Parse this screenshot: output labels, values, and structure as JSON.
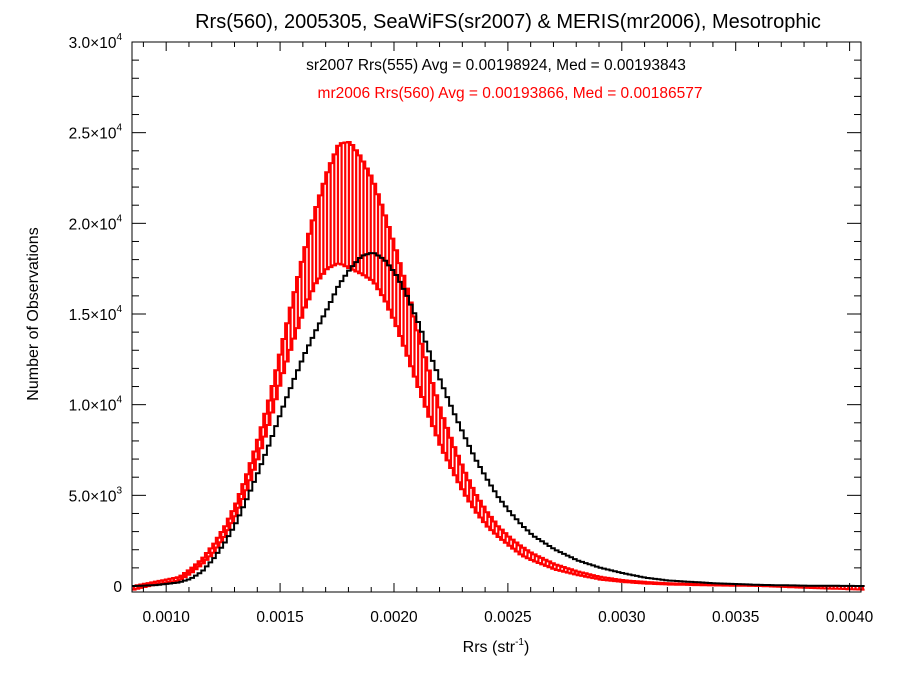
{
  "chart_data": {
    "type": "line",
    "title": "Rrs(560), 2005305, SeaWiFS(sr2007) & MERIS(mr2006), Mesotrophic",
    "xlabel": "Rrs (str",
    "xlabel_sup": "-1",
    "xlabel_close": ")",
    "ylabel": "Number of Observations",
    "xlim": [
      0.00085,
      0.00405
    ],
    "ylim": [
      0,
      30000
    ],
    "x_ticks": [
      {
        "value": 0.001,
        "label": "0.0010"
      },
      {
        "value": 0.0015,
        "label": "0.0015"
      },
      {
        "value": 0.002,
        "label": "0.0020"
      },
      {
        "value": 0.0025,
        "label": "0.0025"
      },
      {
        "value": 0.003,
        "label": "0.0030"
      },
      {
        "value": 0.0035,
        "label": "0.0035"
      },
      {
        "value": 0.004,
        "label": "0.0040"
      }
    ],
    "y_ticks": [
      {
        "value": 0,
        "mant": "0",
        "exp": ""
      },
      {
        "value": 5000,
        "mant": "5.0×10",
        "exp": "3"
      },
      {
        "value": 10000,
        "mant": "1.0×10",
        "exp": "4"
      },
      {
        "value": 15000,
        "mant": "1.5×10",
        "exp": "4"
      },
      {
        "value": 20000,
        "mant": "2.0×10",
        "exp": "4"
      },
      {
        "value": 25000,
        "mant": "2.5×10",
        "exp": "4"
      },
      {
        "value": 30000,
        "mant": "3.0×10",
        "exp": "4"
      }
    ],
    "legend_placement": "top-center",
    "series": [
      {
        "name": "sr2007 Rrs(555) Avg = 0.00198924, Med = 0.00193843",
        "color": "#000000",
        "style": "step",
        "x": [
          0.00085,
          0.00095,
          0.00105,
          0.0011,
          0.00115,
          0.0012,
          0.00125,
          0.0013,
          0.00135,
          0.0014,
          0.00145,
          0.0015,
          0.00155,
          0.0016,
          0.00165,
          0.0017,
          0.00175,
          0.0018,
          0.00185,
          0.0019,
          0.00195,
          0.002,
          0.00205,
          0.0021,
          0.00215,
          0.0022,
          0.00225,
          0.0023,
          0.00235,
          0.0024,
          0.00245,
          0.0025,
          0.00255,
          0.0026,
          0.0027,
          0.0028,
          0.0029,
          0.003,
          0.0031,
          0.0032,
          0.0034,
          0.0036,
          0.0038,
          0.00405
        ],
        "y": [
          0,
          50,
          200,
          400,
          800,
          1500,
          2400,
          3500,
          4900,
          6400,
          8000,
          9700,
          11300,
          12800,
          14100,
          15300,
          16600,
          17500,
          18200,
          18400,
          18000,
          17200,
          16000,
          14500,
          12800,
          11200,
          9700,
          8300,
          7000,
          5900,
          4900,
          4100,
          3400,
          2800,
          2000,
          1400,
          1000,
          700,
          450,
          300,
          150,
          60,
          20,
          0
        ]
      },
      {
        "name": "mr2006 Rrs(560) Avg = 0.00193866, Med = 0.00186577",
        "color": "#ff0000",
        "style": "range",
        "x": [
          0.00085,
          0.00095,
          0.00105,
          0.0011,
          0.00115,
          0.0012,
          0.00125,
          0.0013,
          0.00135,
          0.0014,
          0.00145,
          0.0015,
          0.00155,
          0.0016,
          0.00165,
          0.0017,
          0.00175,
          0.0018,
          0.00185,
          0.0019,
          0.00195,
          0.002,
          0.00205,
          0.0021,
          0.00215,
          0.0022,
          0.00225,
          0.0023,
          0.00235,
          0.0024,
          0.00245,
          0.0025,
          0.00255,
          0.0026,
          0.0027,
          0.0028,
          0.0029,
          0.003,
          0.0031,
          0.0032,
          0.0034,
          0.0036,
          0.0038,
          0.00405
        ],
        "y_low": [
          -200,
          100,
          300,
          700,
          1200,
          1800,
          2700,
          3900,
          5400,
          7200,
          9200,
          11500,
          13500,
          15300,
          16700,
          17500,
          17800,
          17500,
          17200,
          16800,
          15800,
          14400,
          12700,
          10900,
          9200,
          7600,
          6300,
          5100,
          4100,
          3300,
          2700,
          2200,
          1700,
          1400,
          900,
          600,
          350,
          220,
          130,
          80,
          30,
          0,
          -100,
          -200
        ],
        "y_high": [
          0,
          250,
          500,
          950,
          1500,
          2300,
          3300,
          4600,
          6300,
          8300,
          10600,
          13300,
          16000,
          18600,
          20900,
          22900,
          24400,
          24500,
          23600,
          22400,
          20600,
          18600,
          16400,
          14000,
          11700,
          9600,
          7900,
          6400,
          5100,
          4100,
          3300,
          2700,
          2200,
          1800,
          1200,
          800,
          500,
          320,
          220,
          150,
          80,
          40,
          0,
          0
        ]
      }
    ]
  }
}
